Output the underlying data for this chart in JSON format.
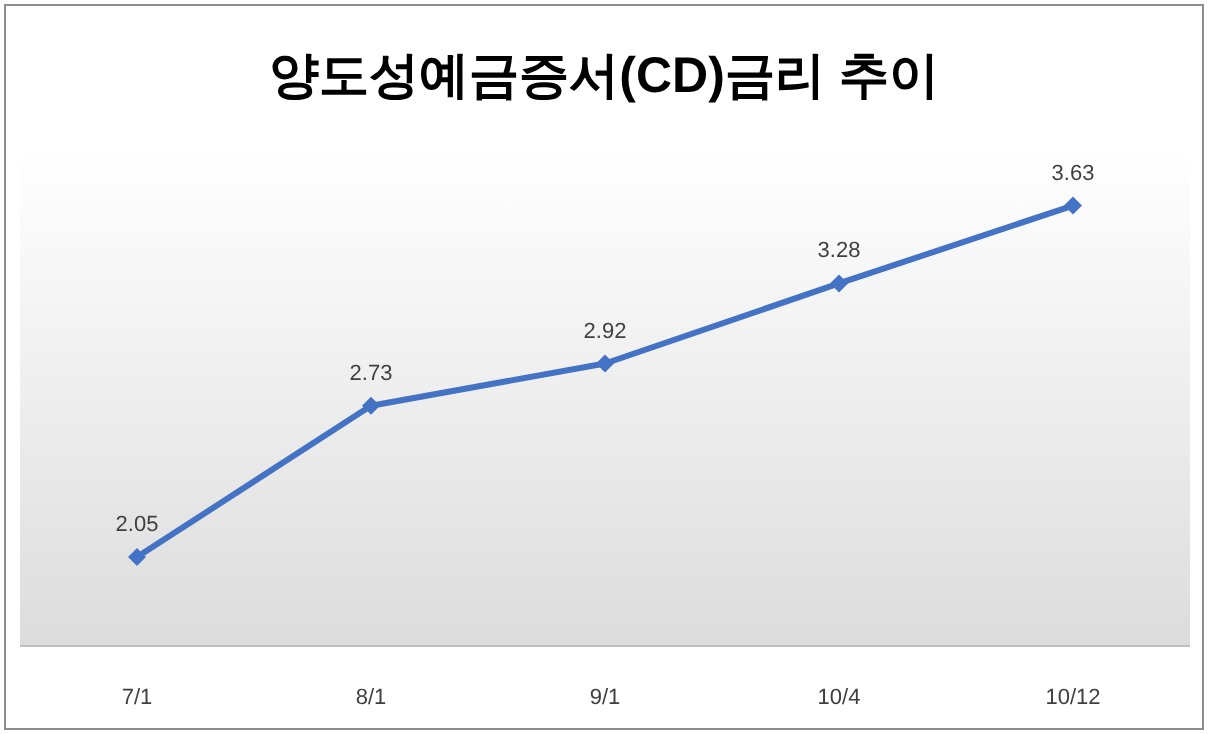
{
  "chart_data": {
    "type": "line",
    "title": "양도성예금증서(CD)금리 추이",
    "categories": [
      "7/1",
      "8/1",
      "9/1",
      "10/4",
      "10/12"
    ],
    "series": [
      {
        "color": "#4472c4",
        "values": [
          2.05,
          2.73,
          2.92,
          3.28,
          3.63
        ]
      }
    ],
    "data_labels": true,
    "marker": "diamond",
    "line_style": "solid"
  }
}
